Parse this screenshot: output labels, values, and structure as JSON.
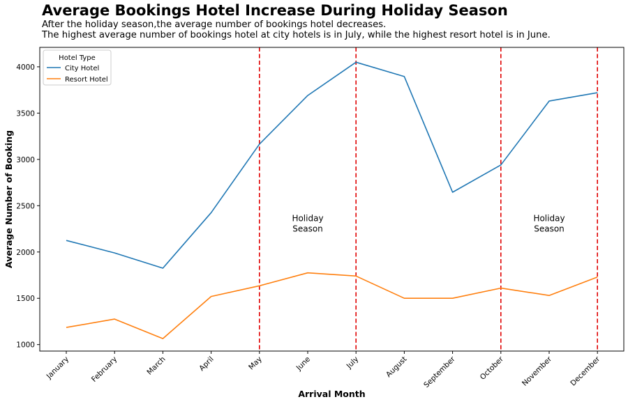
{
  "chart_data": {
    "type": "line",
    "title": "Average Bookings Hotel Increase During Holiday Season",
    "subtitle": [
      "After the holiday season,the average number of bookings hotel decreases.",
      "The highest average number of bookings hotel at city hotels is in July, while the highest resort hotel is in June."
    ],
    "xlabel": "Arrival Month",
    "ylabel": "Average Number of Booking",
    "categories": [
      "January",
      "February",
      "March",
      "April",
      "May",
      "June",
      "July",
      "August",
      "September",
      "October",
      "November",
      "December"
    ],
    "ylim": [
      930,
      4210
    ],
    "yticks": [
      1000,
      1500,
      2000,
      2500,
      3000,
      3500,
      4000
    ],
    "grid": false,
    "legend": {
      "title": "Hotel Type",
      "placement": "top-left"
    },
    "series": [
      {
        "name": "City Hotel",
        "color": "#1f77b4",
        "values": [
          2125,
          1990,
          1825,
          2425,
          3165,
          3690,
          4050,
          3895,
          2645,
          2940,
          3630,
          3720
        ]
      },
      {
        "name": "Resort Hotel",
        "color": "#ff7f0e",
        "values": [
          1185,
          1275,
          1065,
          1520,
          1635,
          1775,
          1740,
          1500,
          1500,
          1610,
          1530,
          1730
        ]
      }
    ],
    "reference_lines": {
      "color": "#e00000",
      "style": "dashed",
      "categories": [
        "May",
        "July",
        "October",
        "December"
      ]
    },
    "annotations": [
      {
        "text": [
          "Holiday",
          "Season"
        ],
        "category": "June",
        "y": 2310
      },
      {
        "text": [
          "Holiday",
          "Season"
        ],
        "category": "November",
        "y": 2310
      }
    ]
  }
}
